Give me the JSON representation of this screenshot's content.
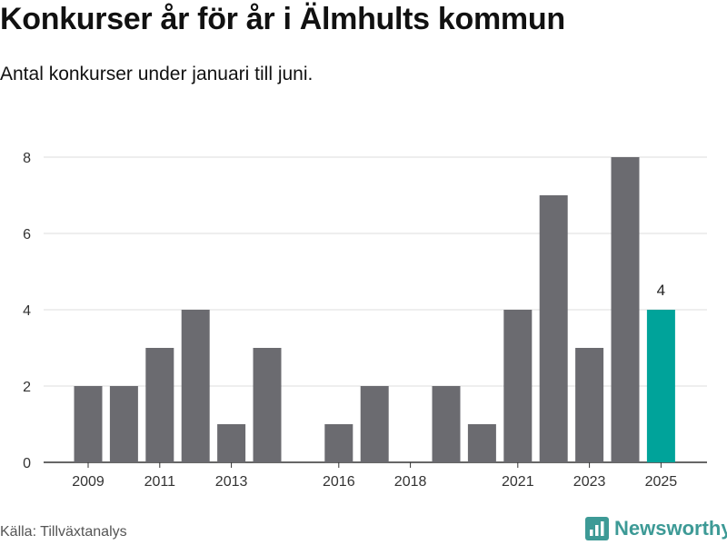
{
  "header": {
    "title": "Konkurser år för år i Älmhults kommun",
    "subtitle": "Antal konkurser under januari till juni."
  },
  "footer": {
    "source": "Källa: Tillväxtanalys",
    "brand": "Newsworthy",
    "brand_icon": "newsworthy-logo-icon"
  },
  "colors": {
    "bar": "#6b6b70",
    "highlight": "#00a39a",
    "grid": "#dddddd",
    "axis": "#333333",
    "brand": "#3d9a96"
  },
  "chart_data": {
    "type": "bar",
    "title": "Konkurser år för år i Älmhults kommun",
    "subtitle": "Antal konkurser under januari till juni.",
    "xlabel": "",
    "ylabel": "",
    "x": [
      2009,
      2010,
      2011,
      2012,
      2013,
      2014,
      2015,
      2016,
      2017,
      2018,
      2019,
      2020,
      2021,
      2022,
      2023,
      2024,
      2025
    ],
    "values": [
      2,
      2,
      3,
      4,
      1,
      3,
      0,
      1,
      2,
      0,
      2,
      1,
      4,
      7,
      3,
      8,
      4
    ],
    "highlight": {
      "x": 2025,
      "value": 4,
      "label": "4"
    },
    "ylim": [
      0,
      8
    ],
    "yticks": [
      0,
      2,
      4,
      6,
      8
    ],
    "xticks": [
      2009,
      2011,
      2013,
      2016,
      2018,
      2021,
      2023,
      2025
    ],
    "grid": true,
    "legend": "none"
  }
}
